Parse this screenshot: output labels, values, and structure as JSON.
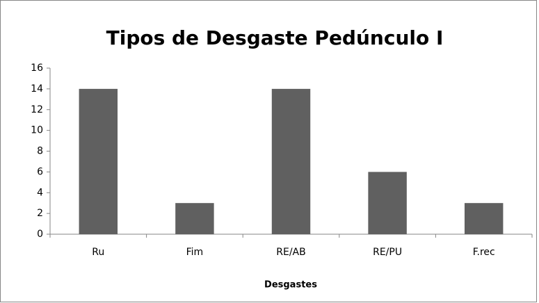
{
  "chart_data": {
    "type": "bar",
    "title": "Tipos de Desgaste Pedúnculo I",
    "x_label": "Desgastes",
    "categories": [
      "Ru",
      "Fim",
      "RE/AB",
      "RE/PU",
      "F.rec"
    ],
    "values": [
      14,
      3,
      14,
      6,
      3
    ],
    "color": "#606060",
    "ylim": [
      0,
      16
    ],
    "yticks": [
      0,
      2,
      4,
      6,
      8,
      10,
      12,
      14,
      16
    ],
    "grid": false
  }
}
